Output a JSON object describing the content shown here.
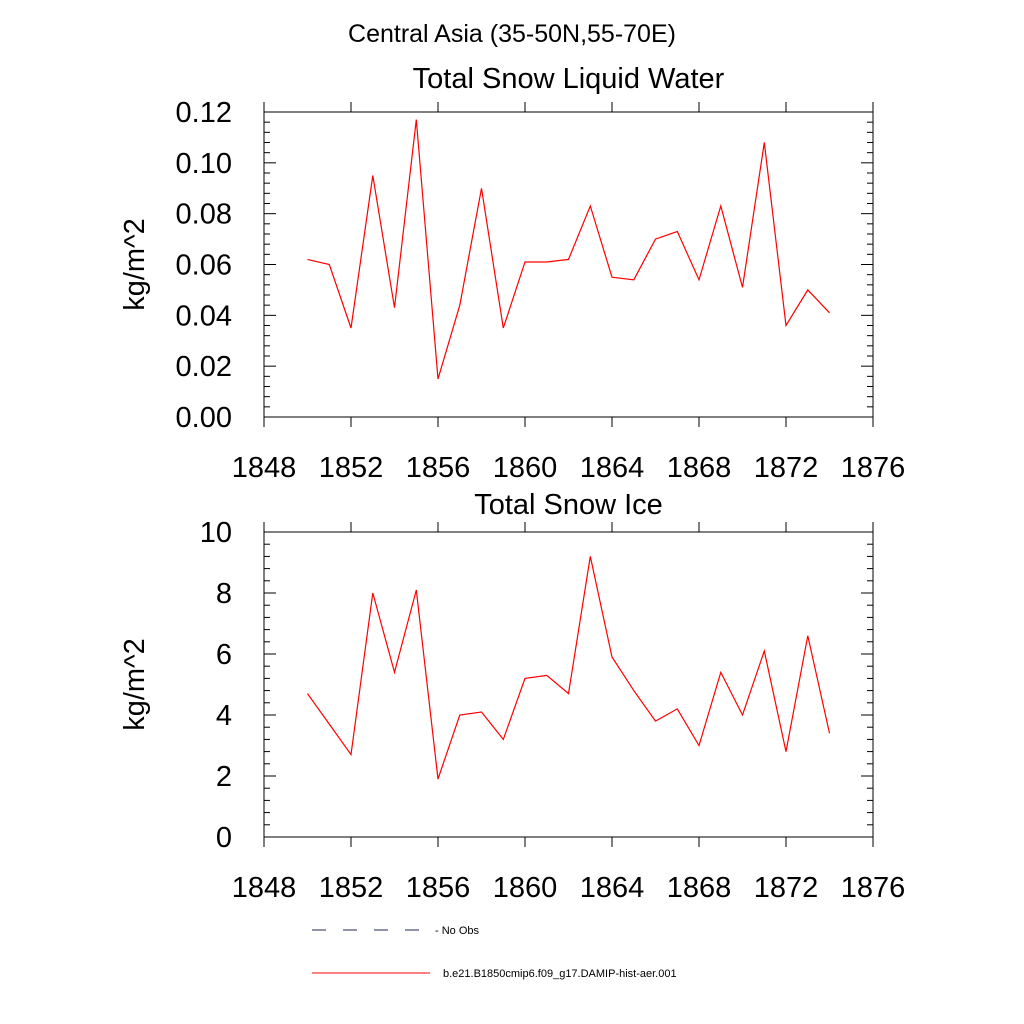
{
  "figure": {
    "suptitle": "Central Asia (35-50N,55-70E)"
  },
  "chart_data": [
    {
      "type": "line",
      "title": "Total Snow Liquid Water",
      "ylabel": "kg/m^2",
      "xlim": [
        1848,
        1876
      ],
      "ylim": [
        0,
        0.12
      ],
      "xticks": [
        1848,
        1852,
        1856,
        1860,
        1864,
        1868,
        1872,
        1876
      ],
      "yticks": [
        0,
        0.02,
        0.04,
        0.06,
        0.08,
        0.1,
        0.12
      ],
      "yticklabels": [
        "0.00",
        "0.02",
        "0.04",
        "0.06",
        "0.08",
        "0.10",
        "0.12"
      ],
      "grid": false,
      "series": [
        {
          "name": "b.e21.B1850cmip6.f09_g17.DAMIP-hist-aer.001",
          "color": "#ff0000",
          "x": [
            1850,
            1851,
            1852,
            1853,
            1854,
            1855,
            1856,
            1857,
            1858,
            1859,
            1860,
            1861,
            1862,
            1863,
            1864,
            1865,
            1866,
            1867,
            1868,
            1869,
            1870,
            1871,
            1872,
            1873,
            1874
          ],
          "y": [
            0.062,
            0.06,
            0.035,
            0.095,
            0.043,
            0.117,
            0.015,
            0.044,
            0.09,
            0.035,
            0.061,
            0.061,
            0.062,
            0.083,
            0.055,
            0.054,
            0.07,
            0.073,
            0.054,
            0.083,
            0.051,
            0.108,
            0.036,
            0.05,
            0.041
          ]
        }
      ]
    },
    {
      "type": "line",
      "title": "Total Snow Ice",
      "ylabel": "kg/m^2",
      "xlim": [
        1848,
        1876
      ],
      "ylim": [
        0,
        10
      ],
      "xticks": [
        1848,
        1852,
        1856,
        1860,
        1864,
        1868,
        1872,
        1876
      ],
      "yticks": [
        0,
        2,
        4,
        6,
        8,
        10
      ],
      "yticklabels": [
        "0",
        "2",
        "4",
        "6",
        "8",
        "10"
      ],
      "grid": false,
      "series": [
        {
          "name": "b.e21.B1850cmip6.f09_g17.DAMIP-hist-aer.001",
          "color": "#ff0000",
          "x": [
            1850,
            1851,
            1852,
            1853,
            1854,
            1855,
            1856,
            1857,
            1858,
            1859,
            1860,
            1861,
            1862,
            1863,
            1864,
            1865,
            1866,
            1867,
            1868,
            1869,
            1870,
            1871,
            1872,
            1873,
            1874
          ],
          "y": [
            4.7,
            3.7,
            2.7,
            8.0,
            5.4,
            8.1,
            1.9,
            4.0,
            4.1,
            3.2,
            5.2,
            5.3,
            4.7,
            9.2,
            5.9,
            4.8,
            3.8,
            4.2,
            3.0,
            5.4,
            4.0,
            6.1,
            2.8,
            6.6,
            3.4
          ]
        }
      ]
    }
  ],
  "legend": {
    "placement": "bottom",
    "items": [
      {
        "label": "No Obs",
        "color": "#1f2a5a",
        "style": "dashed"
      },
      {
        "label": "b.e21.B1850cmip6.f09_g17.DAMIP-hist-aer.001",
        "color": "#ff0000",
        "style": "solid"
      }
    ]
  }
}
